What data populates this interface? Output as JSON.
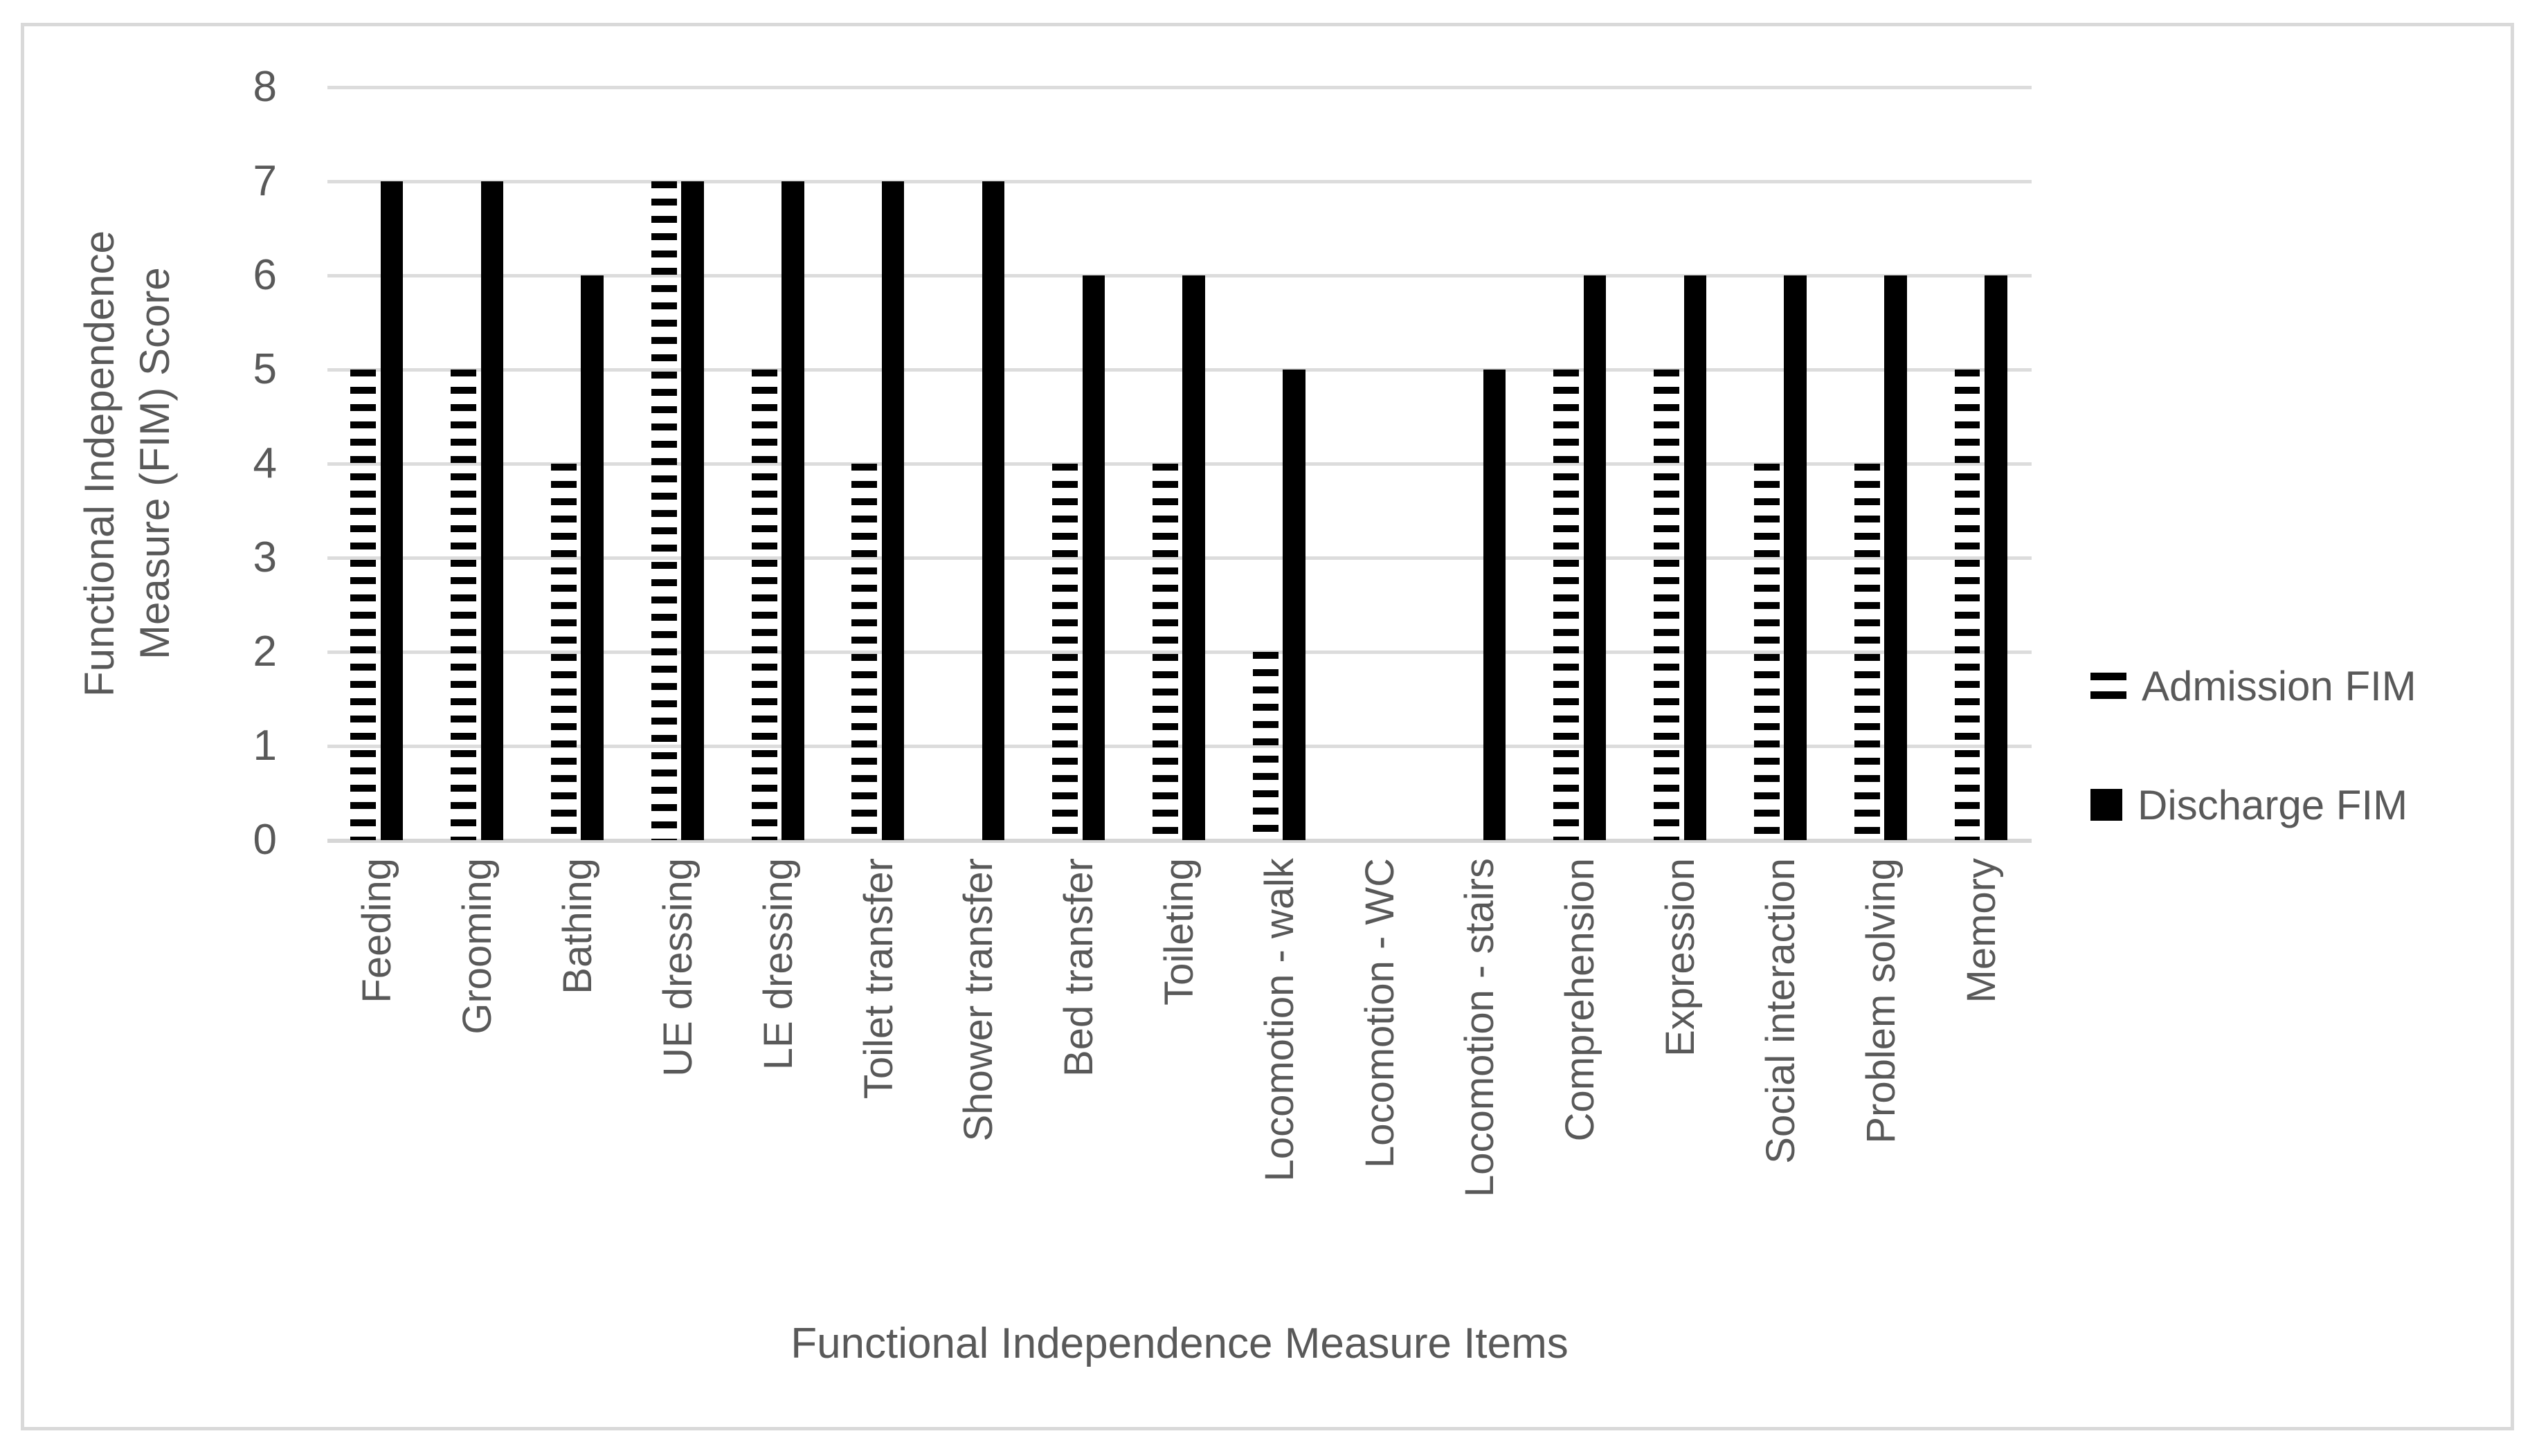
{
  "chart_data": {
    "type": "bar",
    "title": "",
    "categories": [
      "Feeding",
      "Grooming",
      "Bathing",
      "UE dressing",
      "LE dressing",
      "Toilet transfer",
      "Shower transfer",
      "Bed transfer",
      "Toileting",
      "Locomotion - walk",
      "Locomotion - WC",
      "Locomotion - stairs",
      "Comprehension",
      "Expression",
      "Social interaction",
      "Problem solving",
      "Memory"
    ],
    "series": [
      {
        "name": "Admission FIM",
        "style": "dashed",
        "values": [
          5,
          5,
          4,
          7,
          5,
          4,
          0,
          4,
          4,
          2,
          0,
          0,
          5,
          5,
          4,
          4,
          5
        ]
      },
      {
        "name": "Discharge FIM",
        "style": "solid",
        "values": [
          7,
          7,
          6,
          7,
          7,
          7,
          7,
          6,
          6,
          5,
          0,
          5,
          6,
          6,
          6,
          6,
          6
        ]
      }
    ],
    "xlabel": "Functional Independence Measure Items",
    "ylabel_lines": [
      "Functional Independence",
      "Measure (FIM) Score"
    ],
    "yticks": [
      "0",
      "1",
      "2",
      "3",
      "4",
      "5",
      "6",
      "7",
      "8"
    ],
    "ylim": [
      0,
      8
    ],
    "grid": true,
    "legend_position": "right"
  },
  "colors": {
    "bar": "#000000",
    "text": "#595959",
    "gridline": "#DCDCDC",
    "frame_border": "#D9D9D9",
    "background": "#FFFFFF"
  }
}
